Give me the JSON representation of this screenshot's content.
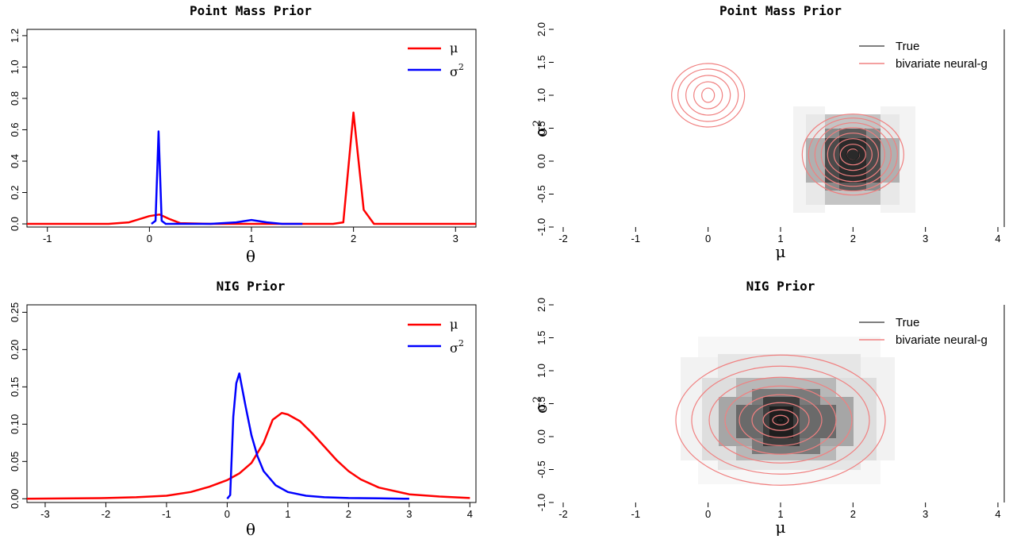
{
  "panels": [
    {
      "title": "Point Mass Prior",
      "xlabel": "θ",
      "xlim": [
        -1.2,
        3.2
      ],
      "ylim": [
        -0.02,
        1.24
      ],
      "xticks": [
        -1,
        0,
        1,
        2,
        3
      ],
      "yticks": [
        0.0,
        0.2,
        0.4,
        0.6,
        0.8,
        1.0,
        1.2
      ],
      "ytick_labels": [
        "0.0",
        "0.2",
        "0.4",
        "0.6",
        "0.8",
        "1.0",
        "1.2"
      ],
      "legend": [
        {
          "label": "μ",
          "color": "#ff0000"
        },
        {
          "label": "σ",
          "sup": "2",
          "color": "#0000ff"
        }
      ]
    },
    {
      "title": "NIG Prior",
      "xlabel": "θ",
      "xlim": [
        -3.3,
        4.1
      ],
      "ylim": [
        -0.005,
        0.26
      ],
      "xticks": [
        -3,
        -2,
        -1,
        0,
        1,
        2,
        3,
        4
      ],
      "yticks": [
        0.0,
        0.05,
        0.1,
        0.15,
        0.2,
        0.25
      ],
      "ytick_labels": [
        "0.00",
        "0.05",
        "0.10",
        "0.15",
        "0.20",
        "0.25"
      ],
      "legend": [
        {
          "label": "μ",
          "color": "#ff0000"
        },
        {
          "label": "σ",
          "sup": "2",
          "color": "#0000ff"
        }
      ]
    },
    {
      "title": "Point Mass Prior",
      "xlabel": "μ",
      "ylabel": "σ",
      "ylabel_sup": "2",
      "xlim": [
        -2,
        4
      ],
      "ylim": [
        -1,
        2
      ],
      "xticks": [
        -2,
        -1,
        0,
        1,
        2,
        3,
        4
      ],
      "yticks": [
        -1.0,
        -0.5,
        0.0,
        0.5,
        1.0,
        1.5,
        2.0
      ],
      "ytick_labels": [
        "-1.0",
        "-0.5",
        "0.0",
        "0.5",
        "1.0",
        "1.5",
        "2.0"
      ],
      "legend": [
        {
          "label": "True",
          "color": "#555555"
        },
        {
          "label": "bivariate neural-g",
          "color": "#f08080"
        }
      ]
    },
    {
      "title": "NIG Prior",
      "xlabel": "μ",
      "ylabel": "σ",
      "ylabel_sup": "2",
      "xlim": [
        -2,
        4
      ],
      "ylim": [
        -1,
        2
      ],
      "xticks": [
        -2,
        -1,
        0,
        1,
        2,
        3,
        4
      ],
      "yticks": [
        -1.0,
        -0.5,
        0.0,
        0.5,
        1.0,
        1.5,
        2.0
      ],
      "ytick_labels": [
        "-1.0",
        "-0.5",
        "0.0",
        "0.5",
        "1.0",
        "1.5",
        "2.0"
      ],
      "legend": [
        {
          "label": "True",
          "color": "#555555"
        },
        {
          "label": "bivariate neural-g",
          "color": "#f08080"
        }
      ]
    }
  ],
  "chart_data": [
    {
      "type": "line",
      "title": "Point Mass Prior",
      "xlabel": "θ",
      "ylabel": "",
      "xlim": [
        -1.2,
        3.2
      ],
      "ylim": [
        0,
        1.2
      ],
      "legend_position": "top-right",
      "series": [
        {
          "name": "μ",
          "color": "#ff0000",
          "x": [
            -1.2,
            -0.4,
            -0.2,
            0.0,
            0.1,
            0.2,
            0.3,
            0.6,
            1.0,
            1.8,
            1.9,
            2.0,
            2.1,
            2.2,
            2.6,
            3.2
          ],
          "y": [
            0.0,
            0.0,
            0.01,
            0.05,
            0.06,
            0.03,
            0.005,
            0.0,
            0.0,
            0.0,
            0.01,
            0.71,
            0.09,
            0.0,
            0.0,
            0.0
          ]
        },
        {
          "name": "σ2",
          "color": "#0000ff",
          "x": [
            0.02,
            0.06,
            0.09,
            0.12,
            0.16,
            0.3,
            0.6,
            0.85,
            1.0,
            1.15,
            1.3,
            1.5
          ],
          "y": [
            0.0,
            0.02,
            0.59,
            0.02,
            0.0,
            0.0,
            0.0,
            0.01,
            0.025,
            0.01,
            0.0,
            0.0
          ]
        }
      ]
    },
    {
      "type": "line",
      "title": "NIG Prior",
      "xlabel": "θ",
      "ylabel": "",
      "xlim": [
        -3.3,
        4.1
      ],
      "ylim": [
        0,
        0.25
      ],
      "legend_position": "top-right",
      "series": [
        {
          "name": "μ",
          "color": "#ff0000",
          "x": [
            -3.3,
            -2.0,
            -1.5,
            -1.0,
            -0.6,
            -0.3,
            0.0,
            0.2,
            0.4,
            0.6,
            0.75,
            0.9,
            1.0,
            1.2,
            1.4,
            1.6,
            1.8,
            2.0,
            2.2,
            2.5,
            3.0,
            3.5,
            4.0
          ],
          "y": [
            0.0,
            0.001,
            0.002,
            0.004,
            0.009,
            0.016,
            0.025,
            0.034,
            0.048,
            0.075,
            0.106,
            0.115,
            0.113,
            0.104,
            0.088,
            0.07,
            0.052,
            0.037,
            0.026,
            0.015,
            0.006,
            0.003,
            0.001
          ]
        },
        {
          "name": "σ2",
          "color": "#0000ff",
          "x": [
            0.0,
            0.05,
            0.1,
            0.15,
            0.2,
            0.3,
            0.4,
            0.5,
            0.6,
            0.8,
            1.0,
            1.3,
            1.6,
            2.0,
            2.5,
            3.0
          ],
          "y": [
            0.0,
            0.005,
            0.11,
            0.155,
            0.168,
            0.125,
            0.085,
            0.057,
            0.037,
            0.018,
            0.009,
            0.004,
            0.002,
            0.001,
            0.0005,
            0.0
          ]
        }
      ]
    },
    {
      "type": "heatmap",
      "title": "Point Mass Prior",
      "xlabel": "μ",
      "ylabel": "σ2",
      "xlim": [
        -2,
        4
      ],
      "ylim": [
        -1,
        2
      ],
      "legend_position": "top-right",
      "series": [
        {
          "name": "True",
          "color": "#555555",
          "modes": [
            {
              "mu": 2.0,
              "sigma2": 0.1
            }
          ]
        },
        {
          "name": "bivariate neural-g",
          "color": "#f08080",
          "modes": [
            {
              "mu": 0.0,
              "sigma2": 1.0
            },
            {
              "mu": 2.0,
              "sigma2": 0.1
            }
          ]
        }
      ]
    },
    {
      "type": "heatmap",
      "title": "NIG Prior",
      "xlabel": "μ",
      "ylabel": "σ2",
      "xlim": [
        -2,
        4
      ],
      "ylim": [
        -1,
        2
      ],
      "legend_position": "top-right",
      "series": [
        {
          "name": "True",
          "color": "#555555",
          "modes": [
            {
              "mu": 1.0,
              "sigma2": 0.25
            }
          ]
        },
        {
          "name": "bivariate neural-g",
          "color": "#f08080",
          "modes": [
            {
              "mu": 1.0,
              "sigma2": 0.25
            }
          ]
        }
      ]
    }
  ]
}
